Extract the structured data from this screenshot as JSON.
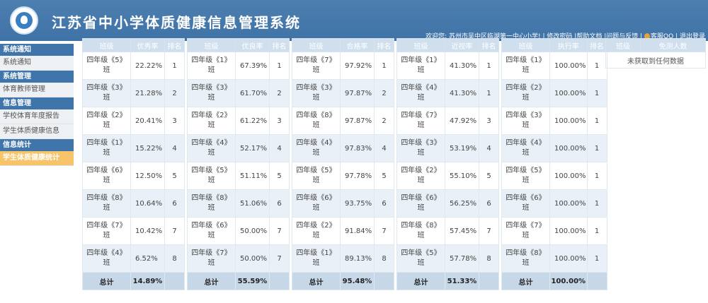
{
  "header": {
    "title": "江苏省中小学体质健康信息管理系统",
    "welcome": "欢迎您: 苏州市吴中区临湖第一中心小学!",
    "links": [
      "修改密码",
      "帮助文档",
      "问题与反馈",
      "客服QQ",
      "退出登录"
    ]
  },
  "sidebar": [
    {
      "head": "系统通知",
      "items": [
        "系统通知"
      ]
    },
    {
      "head": "系统管理",
      "items": [
        "体育教师管理"
      ]
    },
    {
      "head": "信息管理",
      "items": [
        "学校体育年度报告",
        "学生体质健康信息"
      ]
    },
    {
      "head": "信息统计",
      "items": [
        "学生体质健康统计"
      ]
    }
  ],
  "tables": [
    {
      "headers": [
        "班级",
        "优秀率",
        "排名"
      ],
      "rows": [
        [
          "四年级《5》班",
          "22.22%",
          "1"
        ],
        [
          "四年级《3》班",
          "21.28%",
          "2"
        ],
        [
          "四年级《2》班",
          "20.41%",
          "3"
        ],
        [
          "四年级《1》班",
          "15.22%",
          "4"
        ],
        [
          "四年级《6》班",
          "12.50%",
          "5"
        ],
        [
          "四年级《8》班",
          "10.64%",
          "6"
        ],
        [
          "四年级《7》班",
          "10.42%",
          "7"
        ],
        [
          "四年级《4》班",
          "6.52%",
          "8"
        ]
      ],
      "total": [
        "总计",
        "14.89%",
        ""
      ]
    },
    {
      "headers": [
        "班级",
        "优良率",
        "排名"
      ],
      "rows": [
        [
          "四年级《1》班",
          "67.39%",
          "1"
        ],
        [
          "四年级《3》班",
          "61.70%",
          "2"
        ],
        [
          "四年级《2》班",
          "61.22%",
          "3"
        ],
        [
          "四年级《4》班",
          "52.17%",
          "4"
        ],
        [
          "四年级《5》班",
          "51.11%",
          "5"
        ],
        [
          "四年级《8》班",
          "51.06%",
          "6"
        ],
        [
          "四年级《6》班",
          "50.00%",
          "7"
        ],
        [
          "四年级《7》班",
          "50.00%",
          "7"
        ]
      ],
      "total": [
        "总计",
        "55.59%",
        ""
      ]
    },
    {
      "headers": [
        "班级",
        "合格率",
        "排名"
      ],
      "rows": [
        [
          "四年级《7》班",
          "97.92%",
          "1"
        ],
        [
          "四年级《3》班",
          "97.87%",
          "2"
        ],
        [
          "四年级《8》班",
          "97.87%",
          "2"
        ],
        [
          "四年级《4》班",
          "97.83%",
          "4"
        ],
        [
          "四年级《5》班",
          "97.78%",
          "5"
        ],
        [
          "四年级《6》班",
          "93.75%",
          "6"
        ],
        [
          "四年级《2》班",
          "91.84%",
          "7"
        ],
        [
          "四年级《1》班",
          "89.13%",
          "8"
        ]
      ],
      "total": [
        "总计",
        "95.48%",
        ""
      ]
    },
    {
      "headers": [
        "班级",
        "近视率",
        "排名"
      ],
      "rows": [
        [
          "四年级《1》班",
          "41.30%",
          "1"
        ],
        [
          "四年级《4》班",
          "41.30%",
          "1"
        ],
        [
          "四年级《7》班",
          "47.92%",
          "3"
        ],
        [
          "四年级《3》班",
          "53.19%",
          "4"
        ],
        [
          "四年级《2》班",
          "55.10%",
          "5"
        ],
        [
          "四年级《6》班",
          "56.25%",
          "6"
        ],
        [
          "四年级《8》班",
          "57.45%",
          "7"
        ],
        [
          "四年级《5》班",
          "57.78%",
          "8"
        ]
      ],
      "total": [
        "总计",
        "51.33%",
        ""
      ]
    },
    {
      "headers": [
        "班级",
        "执行率",
        "排名"
      ],
      "rows": [
        [
          "四年级《1》班",
          "100.00%",
          "1"
        ],
        [
          "四年级《2》班",
          "100.00%",
          "1"
        ],
        [
          "四年级《3》班",
          "100.00%",
          "1"
        ],
        [
          "四年级《4》班",
          "100.00%",
          "1"
        ],
        [
          "四年级《5》班",
          "100.00%",
          "1"
        ],
        [
          "四年级《6》班",
          "100.00%",
          "1"
        ],
        [
          "四年级《7》班",
          "100.00%",
          "1"
        ],
        [
          "四年级《8》班",
          "100.00%",
          "1"
        ]
      ],
      "total": [
        "总计",
        "100.00%",
        ""
      ]
    }
  ],
  "exempt": {
    "headers": [
      "班级",
      "免测人数"
    ],
    "empty_text": "未获取到任何数据"
  }
}
